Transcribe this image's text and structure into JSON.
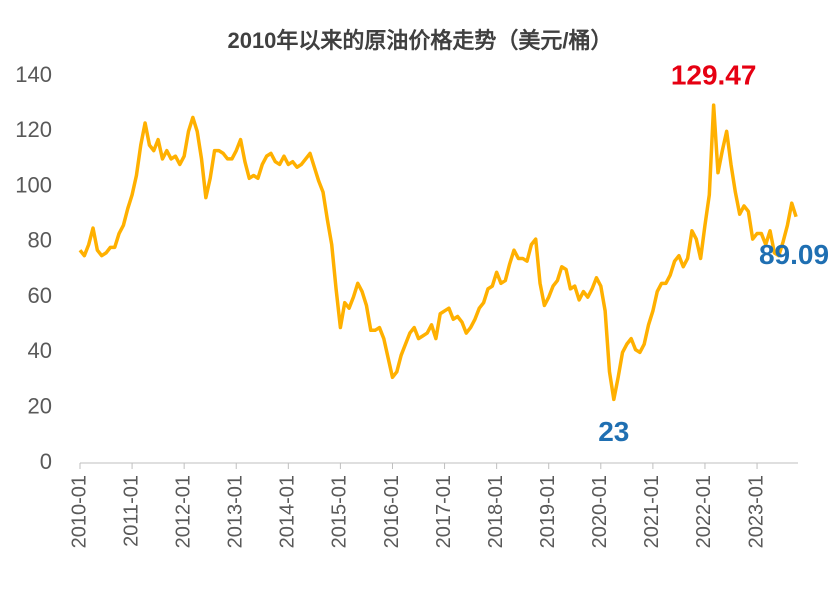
{
  "chart_data": {
    "type": "line",
    "title": "2010年以来的原油价格走势（美元/桶）",
    "x": [
      "2010-01",
      "2010-02",
      "2010-03",
      "2010-04",
      "2010-05",
      "2010-06",
      "2010-07",
      "2010-08",
      "2010-09",
      "2010-10",
      "2010-11",
      "2010-12",
      "2011-01",
      "2011-02",
      "2011-03",
      "2011-04",
      "2011-05",
      "2011-06",
      "2011-07",
      "2011-08",
      "2011-09",
      "2011-10",
      "2011-11",
      "2011-12",
      "2012-01",
      "2012-02",
      "2012-03",
      "2012-04",
      "2012-05",
      "2012-06",
      "2012-07",
      "2012-08",
      "2012-09",
      "2012-10",
      "2012-11",
      "2012-12",
      "2013-01",
      "2013-02",
      "2013-03",
      "2013-04",
      "2013-05",
      "2013-06",
      "2013-07",
      "2013-08",
      "2013-09",
      "2013-10",
      "2013-11",
      "2013-12",
      "2014-01",
      "2014-02",
      "2014-03",
      "2014-04",
      "2014-05",
      "2014-06",
      "2014-07",
      "2014-08",
      "2014-09",
      "2014-10",
      "2014-11",
      "2014-12",
      "2015-01",
      "2015-02",
      "2015-03",
      "2015-04",
      "2015-05",
      "2015-06",
      "2015-07",
      "2015-08",
      "2015-09",
      "2015-10",
      "2015-11",
      "2015-12",
      "2016-01",
      "2016-02",
      "2016-03",
      "2016-04",
      "2016-05",
      "2016-06",
      "2016-07",
      "2016-08",
      "2016-09",
      "2016-10",
      "2016-11",
      "2016-12",
      "2017-01",
      "2017-02",
      "2017-03",
      "2017-04",
      "2017-05",
      "2017-06",
      "2017-07",
      "2017-08",
      "2017-09",
      "2017-10",
      "2017-11",
      "2017-12",
      "2018-01",
      "2018-02",
      "2018-03",
      "2018-04",
      "2018-05",
      "2018-06",
      "2018-07",
      "2018-08",
      "2018-09",
      "2018-10",
      "2018-11",
      "2018-12",
      "2019-01",
      "2019-02",
      "2019-03",
      "2019-04",
      "2019-05",
      "2019-06",
      "2019-07",
      "2019-08",
      "2019-09",
      "2019-10",
      "2019-11",
      "2019-12",
      "2020-01",
      "2020-02",
      "2020-03",
      "2020-04",
      "2020-05",
      "2020-06",
      "2020-07",
      "2020-08",
      "2020-09",
      "2020-10",
      "2020-11",
      "2020-12",
      "2021-01",
      "2021-02",
      "2021-03",
      "2021-04",
      "2021-05",
      "2021-06",
      "2021-07",
      "2021-08",
      "2021-09",
      "2021-10",
      "2021-11",
      "2021-12",
      "2022-01",
      "2022-02",
      "2022-03",
      "2022-04",
      "2022-05",
      "2022-06",
      "2022-07",
      "2022-08",
      "2022-09",
      "2022-10",
      "2022-11",
      "2022-12",
      "2023-01",
      "2023-02",
      "2023-03",
      "2023-04",
      "2023-05",
      "2023-06",
      "2023-07",
      "2023-08",
      "2023-09",
      "2023-10"
    ],
    "series": [
      {
        "name": "原油价格",
        "color": "#ffb000",
        "values": [
          77,
          75,
          79,
          85,
          77,
          75,
          76,
          78,
          78,
          83,
          86,
          92,
          97,
          104,
          115,
          123,
          115,
          113,
          117,
          110,
          113,
          110,
          111,
          108,
          111,
          120,
          125,
          120,
          110,
          96,
          103,
          113,
          113,
          112,
          110,
          110,
          113,
          117,
          109,
          103,
          104,
          103,
          108,
          111,
          112,
          109,
          108,
          111,
          108,
          109,
          107,
          108,
          110,
          112,
          107,
          102,
          98,
          88,
          79,
          63,
          49,
          58,
          56,
          60,
          65,
          62,
          57,
          48,
          48,
          49,
          45,
          38,
          31,
          33,
          39,
          43,
          47,
          49,
          45,
          46,
          47,
          50,
          45,
          54,
          55,
          56,
          52,
          53,
          51,
          47,
          49,
          52,
          56,
          58,
          63,
          64,
          69,
          65,
          66,
          72,
          77,
          74,
          74,
          73,
          79,
          81,
          65,
          57,
          60,
          64,
          66,
          71,
          70,
          63,
          64,
          59,
          62,
          60,
          63,
          67,
          64,
          55,
          33,
          23,
          31,
          40,
          43,
          45,
          41,
          40,
          43,
          50,
          55,
          62,
          65,
          65,
          68,
          73,
          75,
          71,
          74,
          84,
          81,
          74,
          86,
          97,
          129.47,
          105,
          113,
          120,
          108,
          98,
          90,
          93,
          91,
          81,
          83,
          83,
          79,
          84,
          76,
          75,
          80,
          86,
          94,
          89.09
        ]
      }
    ],
    "xticks": [
      "2010-01",
      "2011-01",
      "2012-01",
      "2013-01",
      "2014-01",
      "2015-01",
      "2016-01",
      "2017-01",
      "2018-01",
      "2019-01",
      "2020-01",
      "2021-01",
      "2022-01",
      "2023-01"
    ],
    "ylim": [
      0,
      140
    ],
    "yticks": [
      0,
      20,
      40,
      60,
      80,
      100,
      120,
      140
    ],
    "grid": false,
    "annotations": [
      {
        "x": "2022-03",
        "label": "129.47",
        "color": "#e60012"
      },
      {
        "x": "2020-04",
        "label": "23",
        "color": "#1f6fb2"
      },
      {
        "x": "2023-10",
        "label": "89.09",
        "color": "#1f6fb2"
      }
    ]
  }
}
